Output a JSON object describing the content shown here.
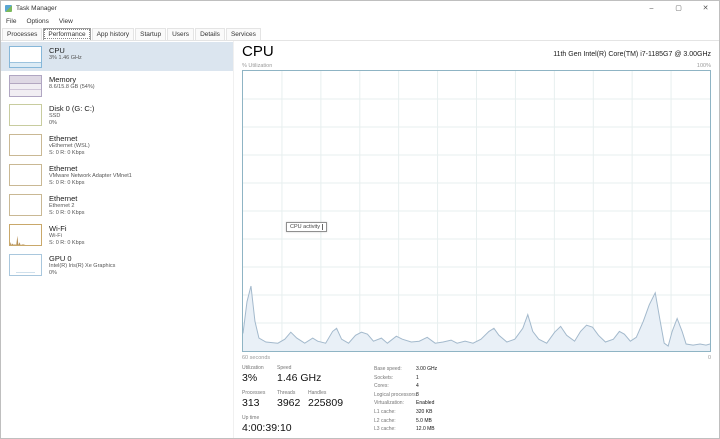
{
  "window": {
    "title": "Task Manager",
    "controls": {
      "minimize": "–",
      "maximize": "▢",
      "close": "✕"
    }
  },
  "menu": {
    "items": [
      "File",
      "Options",
      "View"
    ]
  },
  "tabs": {
    "active": "Performance",
    "items": [
      "Processes",
      "Performance",
      "App history",
      "Startup",
      "Users",
      "Details",
      "Services"
    ]
  },
  "sidebar": {
    "items": [
      {
        "id": "cpu",
        "title": "CPU",
        "lines": [
          "3% 1.46 GHz"
        ],
        "selected": true,
        "accent": "#86b7d9"
      },
      {
        "id": "memory",
        "title": "Memory",
        "lines": [
          "8.6/15.8 GB (54%)"
        ],
        "selected": false,
        "accent": "#b0a6c2"
      },
      {
        "id": "disk0",
        "title": "Disk 0 (G: C:)",
        "lines": [
          "SSD",
          "0%"
        ],
        "selected": false,
        "accent": "#c8cc9f"
      },
      {
        "id": "eth-wsl",
        "title": "Ethernet",
        "lines": [
          "vEthernet (WSL)",
          "S: 0 R: 0 Kbps"
        ],
        "selected": false,
        "accent": "#c9b894"
      },
      {
        "id": "eth-vmnet1",
        "title": "Ethernet",
        "lines": [
          "VMware Network Adapter VMnet1",
          "S: 0 R: 0 Kbps"
        ],
        "selected": false,
        "accent": "#c9b894"
      },
      {
        "id": "eth-2",
        "title": "Ethernet",
        "lines": [
          "Ethernet 2",
          "S: 0 R: 0 Kbps"
        ],
        "selected": false,
        "accent": "#c9b894"
      },
      {
        "id": "wifi",
        "title": "Wi-Fi",
        "lines": [
          "Wi-Fi",
          "S: 0 R: 0 Kbps"
        ],
        "selected": false,
        "accent": "#c9a86a"
      },
      {
        "id": "gpu0",
        "title": "GPU 0",
        "lines": [
          "Intel(R) Iris(R) Xe Graphics",
          "0%"
        ],
        "selected": false,
        "accent": "#a9c7dd"
      }
    ]
  },
  "main": {
    "title": "CPU",
    "subtitle": "11th Gen Intel(R) Core(TM) i7-1185G7 @ 3.00GHz",
    "graph": {
      "ylabel": "% Utilization",
      "ymax_label": "100%",
      "xleft_label": "60 seconds",
      "xright_label": "0",
      "tooltip": "CPU activity",
      "colors": {
        "border": "#8fb4c4",
        "grid": "#e7efef",
        "line": "#a3b9cc",
        "fill": "#e9f0f7"
      },
      "series_percent": [
        [
          0,
          6.3
        ],
        [
          4,
          17.6
        ],
        [
          8,
          23.2
        ],
        [
          12,
          10.6
        ],
        [
          16,
          4.6
        ],
        [
          23,
          3.2
        ],
        [
          35,
          2.8
        ],
        [
          42,
          4.2
        ],
        [
          48,
          6.7
        ],
        [
          54,
          4.6
        ],
        [
          62,
          2.8
        ],
        [
          70,
          4.6
        ],
        [
          75,
          3.5
        ],
        [
          83,
          2.8
        ],
        [
          90,
          7.0
        ],
        [
          94,
          8.1
        ],
        [
          99,
          4.2
        ],
        [
          106,
          2.8
        ],
        [
          113,
          5.6
        ],
        [
          119,
          6.7
        ],
        [
          125,
          6.0
        ],
        [
          131,
          3.5
        ],
        [
          139,
          4.6
        ],
        [
          145,
          2.8
        ],
        [
          154,
          5.3
        ],
        [
          160,
          4.2
        ],
        [
          169,
          3.2
        ],
        [
          177,
          3.5
        ],
        [
          185,
          4.9
        ],
        [
          193,
          2.8
        ],
        [
          201,
          3.2
        ],
        [
          209,
          3.9
        ],
        [
          215,
          2.8
        ],
        [
          223,
          3.5
        ],
        [
          231,
          2.8
        ],
        [
          239,
          4.2
        ],
        [
          247,
          7.0
        ],
        [
          252,
          8.1
        ],
        [
          257,
          5.6
        ],
        [
          265,
          3.2
        ],
        [
          273,
          4.2
        ],
        [
          281,
          8.1
        ],
        [
          286,
          13.0
        ],
        [
          291,
          7.0
        ],
        [
          297,
          4.2
        ],
        [
          305,
          2.8
        ],
        [
          313,
          6.7
        ],
        [
          319,
          8.8
        ],
        [
          325,
          5.6
        ],
        [
          333,
          3.5
        ],
        [
          339,
          7.0
        ],
        [
          345,
          9.2
        ],
        [
          351,
          8.5
        ],
        [
          357,
          5.6
        ],
        [
          364,
          3.2
        ],
        [
          372,
          4.2
        ],
        [
          378,
          7.0
        ],
        [
          383,
          6.0
        ],
        [
          389,
          3.5
        ],
        [
          395,
          4.9
        ],
        [
          402,
          10.6
        ],
        [
          408,
          16.5
        ],
        [
          414,
          20.8
        ],
        [
          419,
          10.6
        ],
        [
          423,
          2.8
        ],
        [
          427,
          1.8
        ],
        [
          431,
          7.0
        ],
        [
          436,
          11.6
        ],
        [
          441,
          7.0
        ],
        [
          445,
          2.5
        ],
        [
          452,
          2.1
        ],
        [
          459,
          2.5
        ],
        [
          465,
          2.1
        ],
        [
          469,
          2.5
        ]
      ]
    },
    "stats": {
      "left": [
        {
          "label": "Utilization",
          "value": "3%"
        },
        {
          "label": "Speed",
          "value": "1.46 GHz"
        },
        {
          "label": "Processes",
          "value": "313"
        },
        {
          "label": "Threads",
          "value": "3962"
        },
        {
          "label": "Handles",
          "value": "225809"
        },
        {
          "label": "Up time",
          "value": "4:00:39:10"
        }
      ],
      "right": [
        {
          "label": "Base speed:",
          "value": "3.00 GHz"
        },
        {
          "label": "Sockets:",
          "value": "1"
        },
        {
          "label": "Cores:",
          "value": "4"
        },
        {
          "label": "Logical processors:",
          "value": "8"
        },
        {
          "label": "Virtualization:",
          "value": "Enabled"
        },
        {
          "label": "L1 cache:",
          "value": "320 KB"
        },
        {
          "label": "L2 cache:",
          "value": "5.0 MB"
        },
        {
          "label": "L3 cache:",
          "value": "12.0 MB"
        }
      ]
    }
  }
}
